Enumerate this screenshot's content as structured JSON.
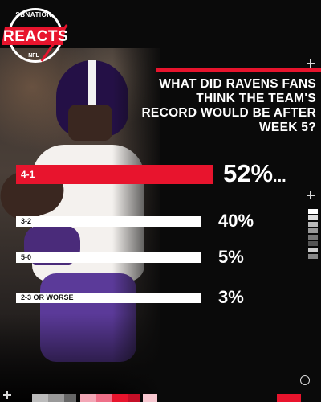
{
  "brand": {
    "network": "SBNATION",
    "show": "REACTS",
    "league": "NFL",
    "accent_color": "#e8142d"
  },
  "question": "What did Ravens fans think the team's record would be after Week 5?",
  "chart_data": {
    "type": "bar",
    "orientation": "horizontal",
    "title": "What did Ravens fans think the team's record would be after Week 5?",
    "categories": [
      "4-1",
      "3-2",
      "5-0",
      "2-3 or worse"
    ],
    "values": [
      52,
      40,
      5,
      3
    ],
    "value_labels": [
      "52%",
      "40%",
      "5%",
      "3%"
    ],
    "value_unit": "%",
    "highlight_index": 0,
    "highlight_suffix": "...",
    "bar_color_highlight": "#e8142d",
    "bar_color_default": "#ffffff",
    "label_color_highlight": "#ffffff",
    "label_color_default": "#111111"
  }
}
